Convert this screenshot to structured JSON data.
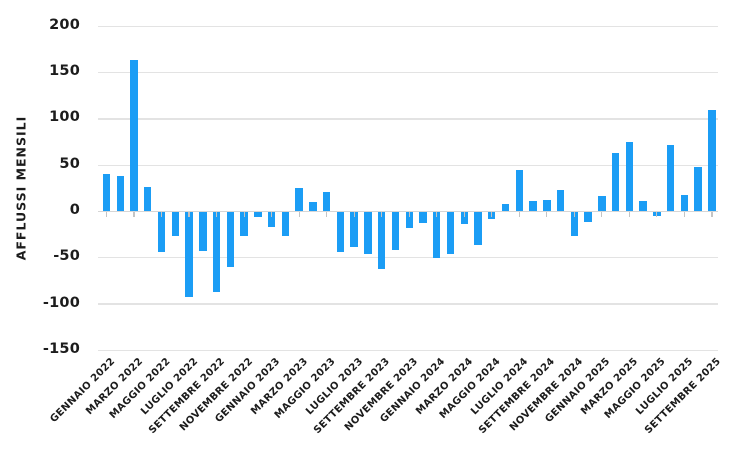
{
  "chart_data": {
    "type": "bar",
    "title": "",
    "ylabel": "AFFLUSSI MENSILI",
    "xlabel": "",
    "ylim": [
      -150,
      200
    ],
    "y_ticks": [
      200,
      150,
      100,
      50,
      0,
      -50,
      -100,
      -150
    ],
    "grid": "horizontal",
    "legend_position": "none",
    "bar_color": "#1B9DF5",
    "gridline_color": "#E3E3E3",
    "zero_line_color": "#D6D6D6",
    "x_tick_mark_color": "#C4C4C4",
    "text_color": "#1C1C1C",
    "background_color": "#FFFFFF",
    "x_tick_label_frequency": "every second month",
    "categories": [
      "GENNAIO 2022",
      "FEBBRAIO 2022",
      "MARZO 2022",
      "APRILE 2022",
      "MAGGIO 2022",
      "GIUGNO 2022",
      "LUGLIO 2022",
      "AGOSTO 2022",
      "SETTEMBRE 2022",
      "OTTOBRE 2022",
      "NOVEMBRE 2022",
      "DICEMBRE 2022",
      "GENNAIO 2023",
      "FEBBRAIO 2023",
      "MARZO 2023",
      "APRILE 2023",
      "MAGGIO 2023",
      "GIUGNO 2023",
      "LUGLIO 2023",
      "AGOSTO 2023",
      "SETTEMBRE 2023",
      "OTTOBRE 2023",
      "NOVEMBRE 2023",
      "DICEMBRE 2023",
      "GENNAIO 2024",
      "FEBBRAIO 2024",
      "MARZO 2024",
      "APRILE 2024",
      "MAGGIO 2024",
      "GIUGNO 2024",
      "LUGLIO 2024",
      "AGOSTO 2024",
      "SETTEMBRE 2024",
      "OTTOBRE 2024",
      "NOVEMBRE 2024",
      "DICEMBRE 2024",
      "GENNAIO 2025",
      "FEBBRAIO 2025",
      "MARZO 2025",
      "APRILE 2025",
      "MAGGIO 2025",
      "GIUGNO 2025",
      "LUGLIO 2025",
      "AGOSTO 2025",
      "SETTEMBRE 2025"
    ],
    "values": [
      41,
      38,
      164,
      27,
      -44,
      -27,
      -92,
      -43,
      -87,
      -60,
      -27,
      -6,
      -17,
      -27,
      25,
      10,
      21,
      -44,
      -38,
      -46,
      -62,
      -42,
      -18,
      -12,
      -50,
      -46,
      -14,
      -36,
      -8,
      8,
      45,
      11,
      12,
      23,
      -27,
      -11,
      17,
      63,
      75,
      11,
      -5,
      72,
      18,
      48,
      110
    ],
    "visible_x_tick_labels": [
      "GENNAIO 2022",
      "MARZO 2022",
      "MAGGIO 2022",
      "LUGLIO 2022",
      "SETTEMBRE 2022",
      "NOVEMBRE 2022",
      "GENNAIO 2023",
      "MARZO 2023",
      "MAGGIO 2023",
      "LUGLIO 2023",
      "SETTEMBRE 2023",
      "NOVEMBRE 2023",
      "GENNAIO 2024",
      "MARZO 2024",
      "MAGGIO 2024",
      "LUGLIO 2024",
      "SETTEMBRE 2024",
      "NOVEMBRE 2024",
      "GENNAIO 2025",
      "MARZO 2025",
      "MAGGIO 2025",
      "LUGLIO 2025",
      "SETTEMBRE 2025"
    ]
  }
}
